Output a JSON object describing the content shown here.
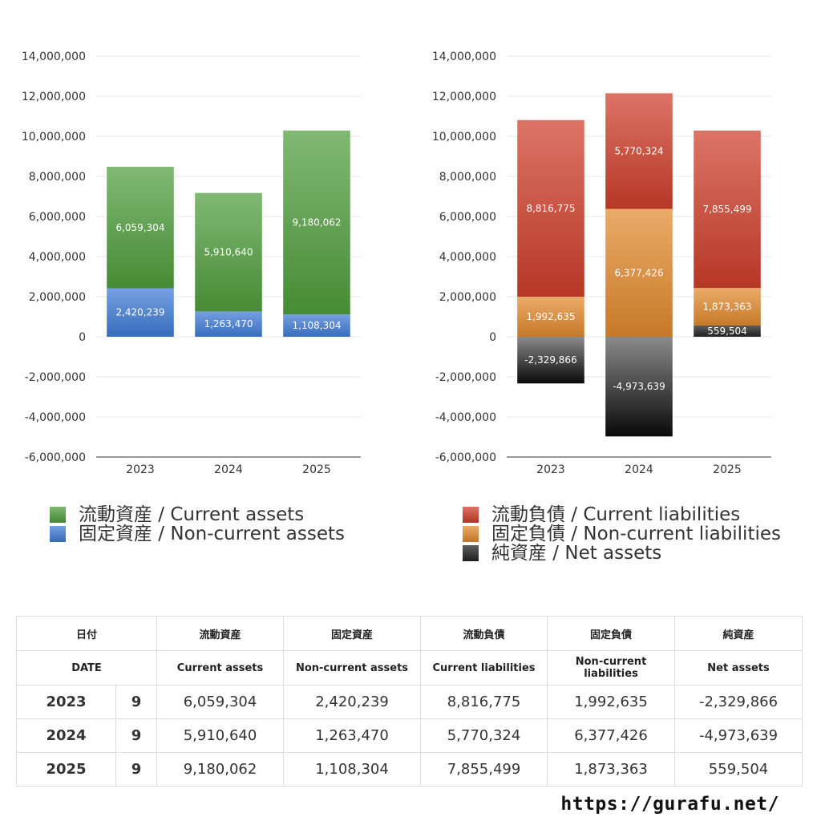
{
  "chart_data": [
    {
      "type": "bar",
      "stacked": true,
      "categories": [
        "2023",
        "2024",
        "2025"
      ],
      "ylim": [
        -6000000,
        14000000
      ],
      "yticks": [
        "14,000,000",
        "12,000,000",
        "10,000,000",
        "8,000,000",
        "6,000,000",
        "4,000,000",
        "2,000,000",
        "0",
        "-2,000,000",
        "-4,000,000",
        "-6,000,000"
      ],
      "series": [
        {
          "name": "固定資産 / Non-current assets",
          "color": "#3f7bd6",
          "values": [
            2420239,
            1263470,
            1108304
          ],
          "labels": [
            "2,420,239",
            "1,263,470",
            "1,108,304"
          ]
        },
        {
          "name": "流動資産 / Current assets",
          "color": "#4f9e3c",
          "values": [
            6059304,
            5910640,
            9180062
          ],
          "labels": [
            "6,059,304",
            "5,910,640",
            "9,180,062"
          ]
        }
      ],
      "legend": [
        {
          "label": "流動資産 / Current assets",
          "color": "#4f9e3c"
        },
        {
          "label": "固定資産 / Non-current assets",
          "color": "#3f7bd6"
        }
      ]
    },
    {
      "type": "bar",
      "stacked": true,
      "categories": [
        "2023",
        "2024",
        "2025"
      ],
      "ylim": [
        -6000000,
        14000000
      ],
      "yticks": [
        "14,000,000",
        "12,000,000",
        "10,000,000",
        "8,000,000",
        "6,000,000",
        "4,000,000",
        "2,000,000",
        "0",
        "-2,000,000",
        "-4,000,000",
        "-6,000,000"
      ],
      "series": [
        {
          "name": "純資産 / Net assets",
          "color": "#222222",
          "values": [
            -2329866,
            -4973639,
            559504
          ],
          "labels": [
            "-2,329,866",
            "-4,973,639",
            "559,504"
          ]
        },
        {
          "name": "固定負債 / Non-current liabilities",
          "color": "#e28a2e",
          "values": [
            1992635,
            6377426,
            1873363
          ],
          "labels": [
            "1,992,635",
            "6,377,426",
            "1,873,363"
          ]
        },
        {
          "name": "流動負債 / Current liabilities",
          "color": "#cf3e2a",
          "values": [
            8816775,
            5770324,
            7855499
          ],
          "labels": [
            "8,816,775",
            "5,770,324",
            "7,855,499"
          ]
        }
      ],
      "legend": [
        {
          "label": "流動負債 / Current liabilities",
          "color": "#cf3e2a"
        },
        {
          "label": "固定負債 / Non-current liabilities",
          "color": "#e28a2e"
        },
        {
          "label": "純資産 / Net assets",
          "color": "#222222"
        }
      ]
    }
  ],
  "table": {
    "header_jp": [
      "日付",
      "流動資産",
      "固定資産",
      "流動負債",
      "固定負債",
      "純資産"
    ],
    "header_en": [
      "DATE",
      "Current assets",
      "Non-current assets",
      "Current liabilities",
      "Non-current liabilities",
      "Net assets"
    ],
    "rows": [
      {
        "year": "2023",
        "month": "9",
        "cells": [
          "6,059,304",
          "2,420,239",
          "8,816,775",
          "1,992,635",
          "-2,329,866"
        ]
      },
      {
        "year": "2024",
        "month": "9",
        "cells": [
          "5,910,640",
          "1,263,470",
          "5,770,324",
          "6,377,426",
          "-4,973,639"
        ]
      },
      {
        "year": "2025",
        "month": "9",
        "cells": [
          "9,180,062",
          "1,108,304",
          "7,855,499",
          "1,873,363",
          "559,504"
        ]
      }
    ]
  },
  "footer": {
    "url": "https://gurafu.net/"
  }
}
